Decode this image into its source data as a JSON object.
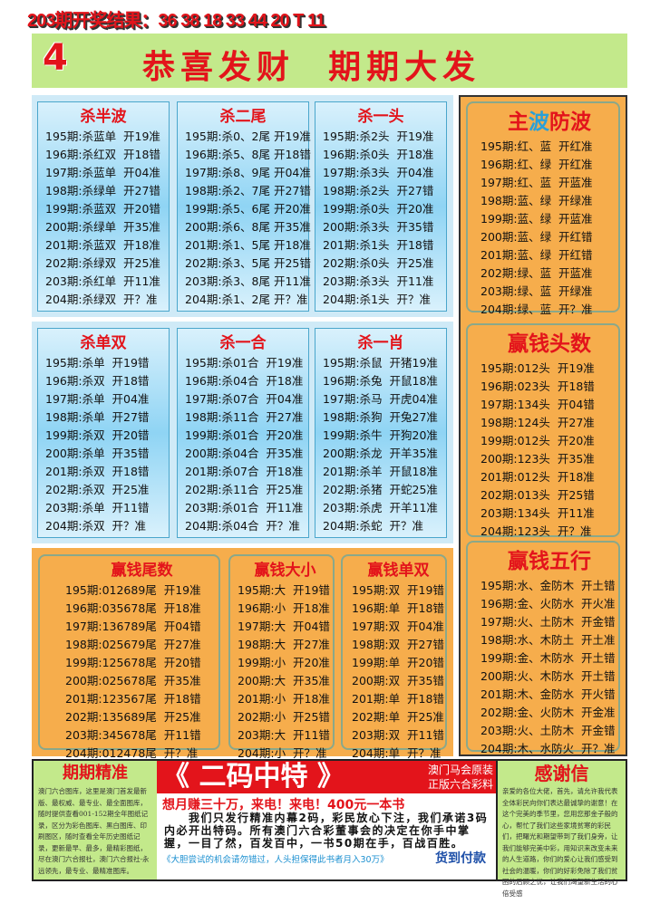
{
  "header": {
    "result": "203期开奖结果：36 38 18 33 44 20 T 11"
  },
  "banner": {
    "number": "4",
    "slogan": "恭喜发财  期期大发"
  },
  "panels_blue_1": [
    {
      "title": "杀半波",
      "rows": [
        "195期:杀蓝单  开19准",
        "196期:杀红双  开18错",
        "197期:杀蓝单  开04准",
        "198期:杀绿单  开27错",
        "199期:杀蓝双  开20错",
        "200期:杀绿单  开35准",
        "201期:杀蓝双  开18准",
        "202期:杀绿双  开25准",
        "203期:杀红单  开11准",
        "204期:杀绿双  开？准"
      ]
    },
    {
      "title": "杀二尾",
      "rows": [
        "195期:杀0、2尾 开19准",
        "196期:杀5、8尾 开18错",
        "197期:杀8、9尾 开04准",
        "198期:杀2、7尾 开27错",
        "199期:杀5、6尾 开20准",
        "200期:杀6、8尾 开35准",
        "201期:杀1、5尾 开18准",
        "202期:杀3、5尾 开25错",
        "203期:杀3、8尾 开11准",
        "204期:杀1、2尾 开？准"
      ]
    },
    {
      "title": "杀一头",
      "rows": [
        "195期:杀2头  开19准",
        "196期:杀0头  开18准",
        "197期:杀3头  开04准",
        "198期:杀2头  开27错",
        "199期:杀0头  开20准",
        "200期:杀3头  开35错",
        "201期:杀1头  开18错",
        "202期:杀0头  开25准",
        "203期:杀3头  开11准",
        "204期:杀1头  开？准"
      ]
    }
  ],
  "panels_blue_2": [
    {
      "title": "杀单双",
      "rows": [
        "195期:杀单  开19错",
        "196期:杀双  开18错",
        "197期:杀单  开04准",
        "198期:杀单  开27错",
        "199期:杀双  开20错",
        "200期:杀单  开35错",
        "201期:杀双  开18错",
        "202期:杀双  开25准",
        "203期:杀单  开11错",
        "204期:杀双  开？准"
      ]
    },
    {
      "title": "杀一合",
      "rows": [
        "195期:杀01合  开19准",
        "196期:杀04合  开18准",
        "197期:杀07合  开04准",
        "198期:杀11合  开27准",
        "199期:杀01合  开20准",
        "200期:杀04合  开35准",
        "201期:杀07合  开18准",
        "202期:杀11合  开25准",
        "203期:杀01合  开11准",
        "204期:杀04合  开？准"
      ]
    },
    {
      "title": "杀一肖",
      "rows": [
        "195期:杀鼠  开猪19准",
        "196期:杀兔  开鼠18准",
        "197期:杀马  开虎04准",
        "198期:杀狗  开兔27准",
        "199期:杀牛  开狗20准",
        "200期:杀龙  开羊35准",
        "201期:杀羊  开鼠18准",
        "202期:杀猪  开蛇25准",
        "203期:杀虎  开羊11准",
        "204期:杀蛇  开？准"
      ]
    }
  ],
  "panels_orange": [
    {
      "title": "赢钱尾数",
      "rows": [
        "195期:012689尾  开19准",
        "196期:035678尾  开18准",
        "197期:136789尾  开04错",
        "198期:025679尾  开27准",
        "199期:125678尾  开20错",
        "200期:025678尾  开35准",
        "201期:123567尾  开18错",
        "202期:135689尾  开25准",
        "203期:345678尾  开11错",
        "204期:012478尾  开？准"
      ]
    },
    {
      "title": "赢钱大小",
      "rows": [
        "195期:大  开19错",
        "196期:小  开18准",
        "197期:大  开04错",
        "198期:大  开27准",
        "199期:小  开20准",
        "200期:大  开35准",
        "201期:小  开18准",
        "202期:小  开25错",
        "203期:大  开11错",
        "204期:小  开？准"
      ]
    },
    {
      "title": "赢钱单双",
      "rows": [
        "195期:双  开19错",
        "196期:单  开18错",
        "197期:双  开04准",
        "198期:双  开27错",
        "199期:单  开20错",
        "200期:双  开35错",
        "201期:单  开18错",
        "202期:单  开25准",
        "203期:双  开11错",
        "204期:单  开？准"
      ]
    }
  ],
  "panels_right": [
    {
      "title": "主波防波",
      "title_parts": [
        "主",
        "波",
        "防波"
      ],
      "title_colors": [
        "#e3141b",
        "#2aa0d8",
        "#e3141b"
      ],
      "rows": [
        "195期:红、蓝  开红准",
        "196期:红、绿  开红准",
        "197期:红、蓝  开蓝准",
        "198期:蓝、绿  开绿准",
        "199期:蓝、绿  开蓝准",
        "200期:蓝、绿  开红错",
        "201期:蓝、绿  开红错",
        "202期:绿、蓝  开蓝准",
        "203期:绿、蓝  开绿准",
        "204期:绿、蓝  开？准"
      ]
    },
    {
      "title": "赢钱头数",
      "rows": [
        "195期:012头  开19准",
        "196期:023头  开18错",
        "197期:134头  开04错",
        "198期:124头  开27准",
        "199期:012头  开20准",
        "200期:123头  开35准",
        "201期:012头  开18准",
        "202期:013头  开25错",
        "203期:134头  开11准",
        "204期:123头  开？准"
      ]
    },
    {
      "title": "赢钱五行",
      "rows": [
        "195期:水、金防木  开土错",
        "196期:金、火防水  开火准",
        "197期:火、土防木  开金错",
        "198期:水、木防土  开土准",
        "199期:金、木防水  开土错",
        "200期:火、木防水  开土错",
        "201期:木、金防水  开火错",
        "202期:金、火防木  开金准",
        "203期:火、土防木  开金错",
        "204期:木、水防火  开？准"
      ]
    }
  ],
  "bottom": {
    "left_title": "期期精准",
    "left_text": "澳门六合图库，这里是澳门首发最新版、最权威、最专业、最全面图库，随时提供查看001-152期全年图纸记录，区分为彩色图库、黑白图库、印刷图区，随时查看全年历史图纸记录，更新最早、最多，最精彩图纸，尽在澳门六合报社，澳门六合报社-永远领先，最专业、最精准图库。",
    "middle_big": "《 二码中特 》",
    "middle_sub1": "澳门马会原装",
    "middle_sub2": "正版六合彩料",
    "middle_call": "想月赚三十万，来电！来电！400元一本书",
    "middle_para": "　　我们只发行精准内幕2码，彩民放心下注，我们承诺3码内必开出特码。所有澳门六合彩董事会的决定在你手中掌握，一目了然，百发百中，一书50期在手，百战百胜。",
    "middle_blue": "《大胆尝试的机会请勿错过，人头担保得此书者月入30万》",
    "middle_cod": "货到付款",
    "right_title": "感谢信",
    "right_text": "亲爱的各位大佬，首先，请允许我代表全体彩民向你们表达最诚挚的谢意！在这个完美的季节里，您用您那金子般的心，帮忙了我们这些家境贫寒的彩民们，把曙光和期望带到了我们身旁，让我们能够完美中彩，用知识来改变未来的人生道路，你们的爱心让我们感受到社会的温暖，你们的好彩免除了我们贫困的后顾之忧，让我们渴望新生活的心倍受感"
  }
}
